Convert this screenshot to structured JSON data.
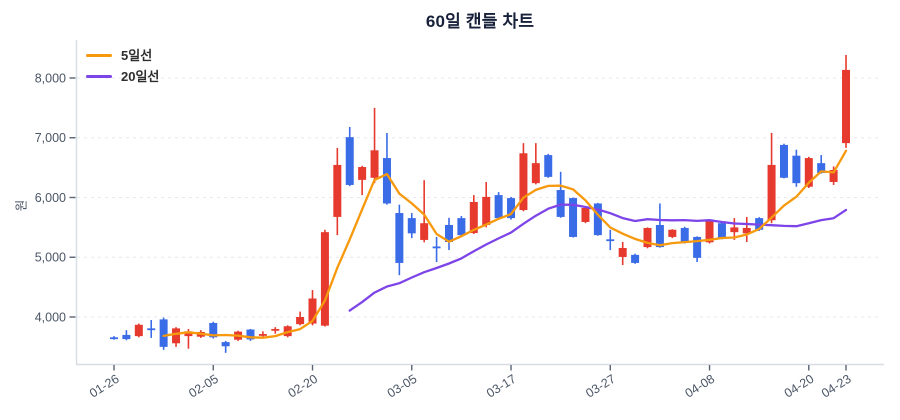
{
  "title": "60일 캔들 차트",
  "y_axis_label": "원",
  "legend": [
    {
      "label": "5일선",
      "color": "#F7990D"
    },
    {
      "label": "20일선",
      "color": "#7D45E8"
    }
  ],
  "colors": {
    "up": "#E63A2E",
    "down": "#3A6CE8",
    "ma5": "#F7990D",
    "ma20": "#7D45E8",
    "grid": "#E5E8ED",
    "spine": "#D8DDE3",
    "tick": "#5A6372",
    "tick_label": "#4A5565",
    "title": "#18213A"
  },
  "chart_data": {
    "type": "candlestick",
    "title": "60일 캔들 차트",
    "ylabel": "원",
    "unit": "won",
    "candle_count": 60,
    "ylim": [
      3213,
      8636
    ],
    "grid": "horizontal-dashed",
    "legend_position": "upper-left",
    "legend_entries": [
      "5일선",
      "20일선"
    ],
    "y_ticks": [
      {
        "value": 4000,
        "label": "4,000"
      },
      {
        "value": 5000,
        "label": "5,000"
      },
      {
        "value": 6000,
        "label": "6,000"
      },
      {
        "value": 7000,
        "label": "7,000"
      },
      {
        "value": 8000,
        "label": "8,000"
      }
    ],
    "x_ticks": [
      {
        "index": 0,
        "label": "01-26"
      },
      {
        "index": 8,
        "label": "02-05"
      },
      {
        "index": 16,
        "label": "02-20"
      },
      {
        "index": 24,
        "label": "03-05"
      },
      {
        "index": 32,
        "label": "03-17"
      },
      {
        "index": 40,
        "label": "03-27"
      },
      {
        "index": 48,
        "label": "04-08"
      },
      {
        "index": 56,
        "label": "04-20"
      },
      {
        "index": 59,
        "label": "04-23"
      }
    ],
    "candles_ohlc": [
      [
        3660,
        3680,
        3620,
        3640
      ],
      [
        3700,
        3780,
        3610,
        3630
      ],
      [
        3680,
        3890,
        3660,
        3870
      ],
      [
        3810,
        3950,
        3650,
        3800
      ],
      [
        3960,
        3990,
        3450,
        3500
      ],
      [
        3560,
        3830,
        3500,
        3810
      ],
      [
        3680,
        3800,
        3470,
        3760
      ],
      [
        3670,
        3780,
        3650,
        3750
      ],
      [
        3900,
        3920,
        3640,
        3660
      ],
      [
        3580,
        3600,
        3400,
        3510
      ],
      [
        3620,
        3770,
        3600,
        3755
      ],
      [
        3790,
        3800,
        3600,
        3625
      ],
      [
        3690,
        3760,
        3640,
        3715
      ],
      [
        3770,
        3830,
        3720,
        3800
      ],
      [
        3680,
        3860,
        3660,
        3845
      ],
      [
        3880,
        4090,
        3860,
        4000
      ],
      [
        3890,
        4450,
        3860,
        4310
      ],
      [
        3855,
        5460,
        3840,
        5420
      ],
      [
        5675,
        6830,
        5370,
        6545
      ],
      [
        7010,
        7180,
        6190,
        6210
      ],
      [
        6295,
        6530,
        6040,
        6510
      ],
      [
        6330,
        7500,
        6240,
        6790
      ],
      [
        6660,
        7080,
        5880,
        5900
      ],
      [
        5740,
        5880,
        4700,
        4905
      ],
      [
        5655,
        5740,
        5320,
        5400
      ],
      [
        5290,
        6290,
        5250,
        5570
      ],
      [
        5180,
        5340,
        4920,
        5170
      ],
      [
        5540,
        5660,
        5120,
        5255
      ],
      [
        5655,
        5690,
        5360,
        5370
      ],
      [
        5405,
        6040,
        5390,
        5925
      ],
      [
        5540,
        6260,
        5500,
        6010
      ],
      [
        6040,
        6090,
        5640,
        5655
      ],
      [
        5990,
        6010,
        5630,
        5655
      ],
      [
        5790,
        6910,
        5770,
        6740
      ],
      [
        6240,
        6910,
        6220,
        6575
      ],
      [
        6710,
        6730,
        6330,
        6345
      ],
      [
        6125,
        6430,
        5660,
        5675
      ],
      [
        5990,
        6000,
        5330,
        5340
      ],
      [
        5590,
        5840,
        5570,
        5825
      ],
      [
        5900,
        5910,
        5360,
        5370
      ],
      [
        5300,
        5460,
        5120,
        5280
      ],
      [
        5005,
        5255,
        4870,
        5155
      ],
      [
        5040,
        5060,
        4890,
        4905
      ],
      [
        5170,
        5500,
        5150,
        5490
      ],
      [
        5540,
        5900,
        5160,
        5170
      ],
      [
        5340,
        5470,
        5320,
        5460
      ],
      [
        5490,
        5510,
        5230,
        5240
      ],
      [
        5340,
        5350,
        4920,
        4990
      ],
      [
        5250,
        5620,
        5230,
        5600
      ],
      [
        5570,
        5580,
        5300,
        5320
      ],
      [
        5420,
        5655,
        5290,
        5500
      ],
      [
        5400,
        5675,
        5255,
        5490
      ],
      [
        5655,
        5670,
        5440,
        5460
      ],
      [
        5620,
        7080,
        5570,
        6545
      ],
      [
        6880,
        6900,
        6320,
        6330
      ],
      [
        6700,
        6800,
        6180,
        6240
      ],
      [
        6180,
        6680,
        6160,
        6660
      ],
      [
        6575,
        6710,
        6400,
        6410
      ],
      [
        6260,
        6520,
        6210,
        6460
      ],
      [
        6910,
        8385,
        6830,
        8135
      ]
    ],
    "ma5": {
      "start_index": 4,
      "values": [
        3684,
        3718,
        3744,
        3720,
        3692,
        3698,
        3687,
        3660,
        3653,
        3681,
        3748,
        3797,
        3934,
        4275,
        4824,
        5297,
        5799,
        6295,
        6391,
        6063,
        5901,
        5713,
        5389,
        5260,
        5353,
        5458,
        5546,
        5643,
        5723,
        5997,
        6127,
        6194,
        6198,
        6135,
        5952,
        5711,
        5498,
        5394,
        5307,
        5240,
        5200,
        5236,
        5253,
        5270,
        5292,
        5322,
        5330,
        5380,
        5474,
        5663,
        5865,
        6013,
        6247,
        6437,
        6420,
        6781
      ]
    },
    "ma20": {
      "start_index": 19,
      "values": [
        4107,
        4250,
        4408,
        4510,
        4565,
        4661,
        4749,
        4820,
        4895,
        4980,
        5101,
        5214,
        5315,
        5412,
        5559,
        5696,
        5813,
        5881,
        5877,
        5841,
        5799,
        5738,
        5656,
        5606,
        5636,
        5624,
        5619,
        5622,
        5609,
        5620,
        5590,
        5565,
        5556,
        5547,
        5537,
        5525,
        5519,
        5569,
        5622,
        5654,
        5792
      ]
    }
  }
}
